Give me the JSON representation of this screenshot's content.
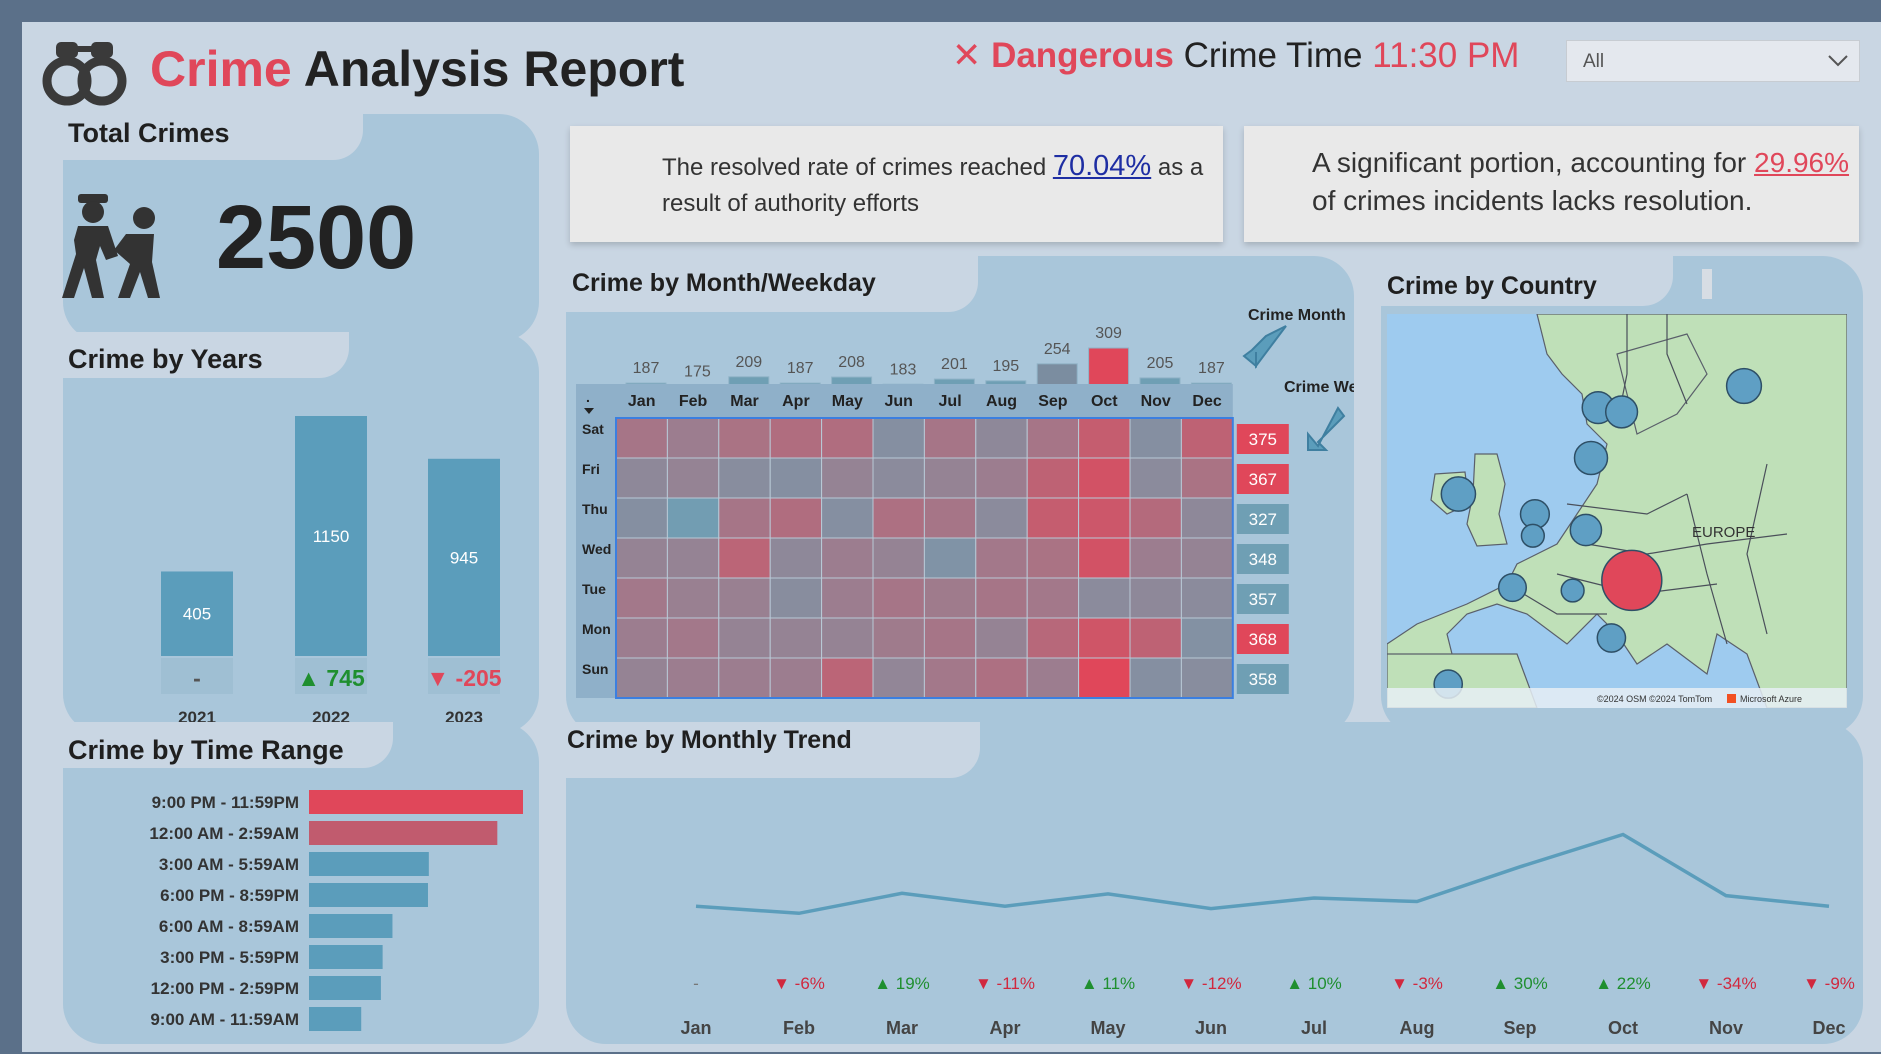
{
  "header": {
    "title_part1": "Crime",
    "title_part2": "Analysis Report",
    "danger_mark": "✕",
    "danger_word": "Dangerous",
    "danger_label": "Crime Time",
    "danger_time": "11:30 PM",
    "filter_value": "All"
  },
  "colors": {
    "red": "#e0475a",
    "teal": "#5b9dbb",
    "panel": "#a9c6da",
    "page": "#c9d6e3",
    "green": "#1f8f2f",
    "blue_pct": "#1e2ea3"
  },
  "total_crimes": {
    "title": "Total Crimes",
    "value": "2500",
    "icon": "police-arrest-icon"
  },
  "note_resolved": {
    "text_before": "The resolved rate of crimes reached",
    "pct": "70.04%",
    "text_after": "as a",
    "line2": "result of authority efforts"
  },
  "note_unresolved": {
    "text_before": "A significant portion, accounting for",
    "pct": "29.96%",
    "line2": "of crimes incidents lacks resolution."
  },
  "years_chart_title": "Crime by Years",
  "time_range_title": "Crime by Time Range",
  "month_weekday_title": "Crime by Month/Weekday",
  "crime_month_label": "Crime Month",
  "crime_week_label": "Crime Week",
  "country_title": "Crime by Country",
  "map_label": "EUROPE",
  "map_attribution": "©2024 OSM ©2024 TomTom",
  "map_brand": "Microsoft Azure",
  "monthly_trend_title": "Crime by Monthly Trend",
  "chart_data": [
    {
      "type": "bar",
      "title": "Crime by Years",
      "categories": [
        "2021",
        "2022",
        "2023"
      ],
      "values": [
        405,
        1150,
        945
      ],
      "change_labels": [
        "-",
        "745",
        "-205"
      ],
      "change_direction": [
        "none",
        "up",
        "down"
      ],
      "ylim": [
        0,
        1150
      ]
    },
    {
      "type": "bar",
      "orientation": "horizontal",
      "title": "Crime by Time Range",
      "categories": [
        "9:00 PM - 11:59PM",
        "12:00 AM - 2:59AM",
        "3:00 AM - 5:59AM",
        "6:00 PM - 8:59PM",
        "6:00 AM - 8:59AM",
        "3:00 PM - 5:59PM",
        "12:00 PM - 2:59PM",
        "9:00 AM - 11:59AM"
      ],
      "values": [
        500,
        440,
        280,
        278,
        195,
        172,
        168,
        122
      ],
      "highlight": [
        true,
        true,
        false,
        false,
        false,
        false,
        false,
        false
      ]
    },
    {
      "type": "bar",
      "title": "Crime Month",
      "categories": [
        "Jan",
        "Feb",
        "Mar",
        "Apr",
        "May",
        "Jun",
        "Jul",
        "Aug",
        "Sep",
        "Oct",
        "Nov",
        "Dec"
      ],
      "values": [
        187,
        175,
        209,
        187,
        208,
        183,
        201,
        195,
        254,
        309,
        205,
        187
      ]
    },
    {
      "type": "heatmap",
      "title": "Crime by Month/Weekday",
      "corner_label": ".",
      "x": [
        "Jan",
        "Feb",
        "Mar",
        "Apr",
        "May",
        "Jun",
        "Jul",
        "Aug",
        "Sep",
        "Oct",
        "Nov",
        "Dec"
      ],
      "y": [
        "Sat",
        "Fri",
        "Thu",
        "Wed",
        "Tue",
        "Mon",
        "Sun"
      ],
      "values": [
        [
          0.66,
          0.6,
          0.68,
          0.72,
          0.72,
          0.4,
          0.66,
          0.52,
          0.66,
          0.84,
          0.4,
          0.8
        ],
        [
          0.52,
          0.56,
          0.45,
          0.4,
          0.56,
          0.5,
          0.56,
          0.6,
          0.8,
          0.92,
          0.5,
          0.68
        ],
        [
          0.4,
          0.05,
          0.66,
          0.72,
          0.4,
          0.7,
          0.66,
          0.5,
          0.84,
          0.88,
          0.74,
          0.52
        ],
        [
          0.56,
          0.56,
          0.78,
          0.52,
          0.6,
          0.56,
          0.3,
          0.64,
          0.68,
          0.92,
          0.6,
          0.56
        ],
        [
          0.64,
          0.58,
          0.58,
          0.45,
          0.6,
          0.66,
          0.62,
          0.66,
          0.64,
          0.5,
          0.52,
          0.5
        ],
        [
          0.6,
          0.64,
          0.56,
          0.56,
          0.56,
          0.62,
          0.66,
          0.56,
          0.76,
          0.9,
          0.8,
          0.35
        ],
        [
          0.56,
          0.6,
          0.6,
          0.6,
          0.78,
          0.54,
          0.64,
          0.7,
          0.6,
          1.0,
          0.4,
          0.45
        ]
      ]
    },
    {
      "type": "bar",
      "title": "Crime Week",
      "categories": [
        "Sat",
        "Fri",
        "Thu",
        "Wed",
        "Tue",
        "Mon",
        "Sun"
      ],
      "values": [
        375,
        367,
        327,
        348,
        357,
        368,
        358
      ],
      "highlight": [
        true,
        true,
        false,
        false,
        false,
        true,
        false
      ]
    },
    {
      "type": "scatter",
      "title": "Crime by Country",
      "note": "bubble map; sizes are relative",
      "points": [
        {
          "lon": 25.0,
          "lat": 61.0,
          "size": 0.38,
          "highlight": false
        },
        {
          "lon": 10.7,
          "lat": 59.5,
          "size": 0.33,
          "highlight": false
        },
        {
          "lon": 13.0,
          "lat": 59.2,
          "size": 0.33,
          "highlight": false
        },
        {
          "lon": 10.0,
          "lat": 56.0,
          "size": 0.35,
          "highlight": false
        },
        {
          "lon": -3.0,
          "lat": 53.5,
          "size": 0.37,
          "highlight": false
        },
        {
          "lon": 4.5,
          "lat": 52.1,
          "size": 0.28,
          "highlight": false
        },
        {
          "lon": 4.3,
          "lat": 50.6,
          "size": 0.18,
          "highlight": false
        },
        {
          "lon": 9.5,
          "lat": 51.0,
          "size": 0.32,
          "highlight": false
        },
        {
          "lon": 14.0,
          "lat": 47.5,
          "size": 1.0,
          "highlight": true
        },
        {
          "lon": 8.2,
          "lat": 46.8,
          "size": 0.18,
          "highlight": false
        },
        {
          "lon": 2.3,
          "lat": 47.0,
          "size": 0.26,
          "highlight": false
        },
        {
          "lon": 12.0,
          "lat": 43.5,
          "size": 0.27,
          "highlight": false
        },
        {
          "lon": -4.0,
          "lat": 40.3,
          "size": 0.27,
          "highlight": false
        }
      ]
    },
    {
      "type": "line",
      "title": "Crime by Monthly Trend",
      "categories": [
        "Jan",
        "Feb",
        "Mar",
        "Apr",
        "May",
        "Jun",
        "Jul",
        "Aug",
        "Sep",
        "Oct",
        "Nov",
        "Dec"
      ],
      "values": [
        187,
        175,
        209,
        187,
        208,
        183,
        201,
        195,
        254,
        309,
        205,
        187
      ],
      "change_labels": [
        "-",
        "-6%",
        "19%",
        "-11%",
        "11%",
        "-12%",
        "10%",
        "-3%",
        "30%",
        "22%",
        "-34%",
        "-9%"
      ],
      "change_direction": [
        "none",
        "down",
        "up",
        "down",
        "up",
        "down",
        "up",
        "down",
        "up",
        "up",
        "down",
        "down"
      ]
    }
  ]
}
